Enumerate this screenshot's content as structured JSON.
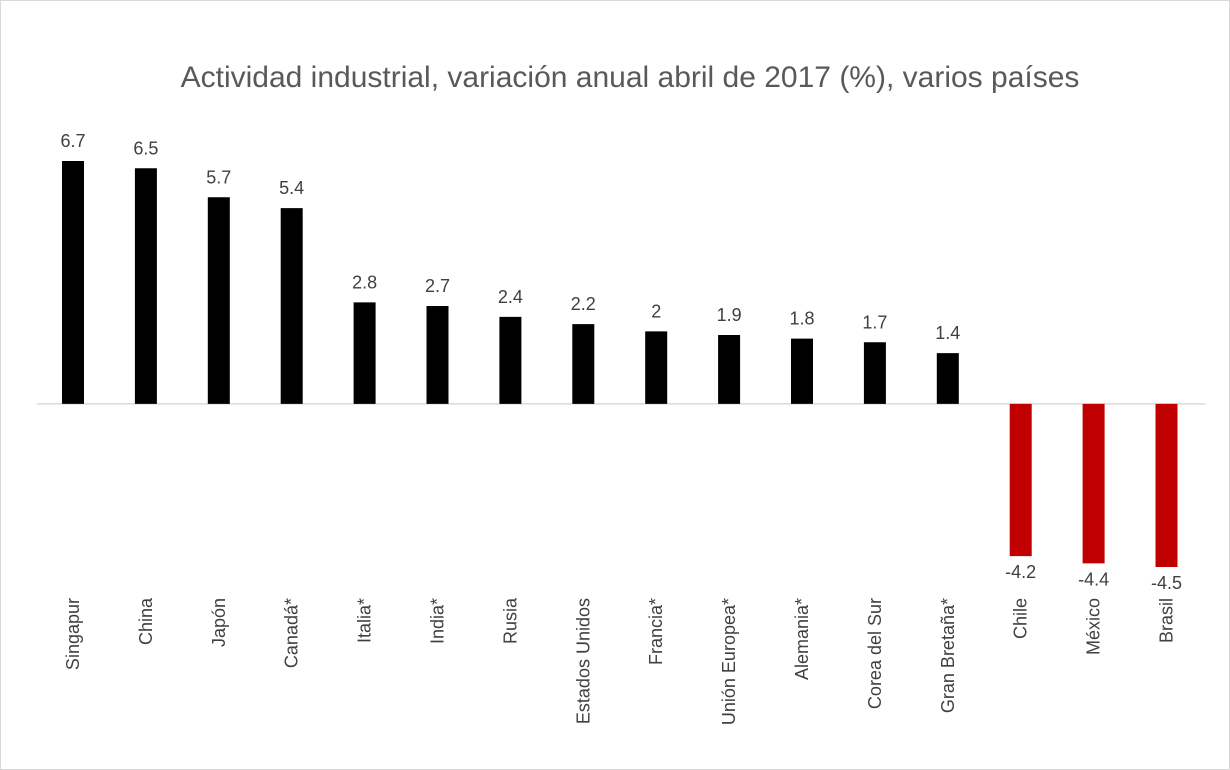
{
  "chart_data": {
    "type": "bar",
    "title": "Actividad industrial, variación anual abril de 2017 (%), varios países",
    "categories": [
      "Singapur",
      "China",
      "Japón",
      "Canadá*",
      "Italia*",
      "India*",
      "Rusia",
      "Estados Unidos",
      "Francia*",
      "Unión Europea*",
      "Alemania*",
      "Corea del Sur",
      "Gran Bretaña*",
      "Chile",
      "México",
      "Brasil"
    ],
    "values": [
      6.7,
      6.5,
      5.7,
      5.4,
      2.8,
      2.7,
      2.4,
      2.2,
      2,
      1.9,
      1.8,
      1.7,
      1.4,
      -4.2,
      -4.4,
      -4.5
    ],
    "colors": [
      "#000000",
      "#000000",
      "#000000",
      "#000000",
      "#000000",
      "#000000",
      "#000000",
      "#000000",
      "#000000",
      "#000000",
      "#000000",
      "#000000",
      "#000000",
      "#c00000",
      "#c00000",
      "#c00000"
    ]
  }
}
